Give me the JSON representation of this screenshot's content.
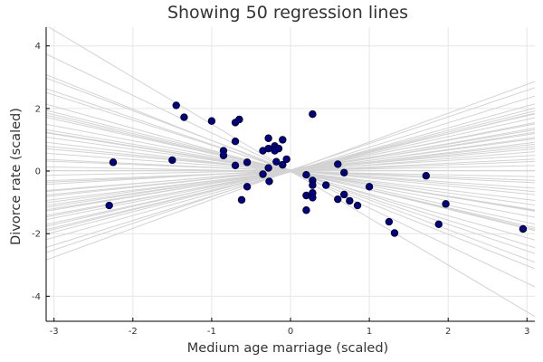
{
  "chart_data": {
    "type": "scatter",
    "title": "Showing 50 regression lines",
    "xlabel": "Medium age marriage (scaled)",
    "ylabel": "Divorce rate (scaled)",
    "xlim": [
      -3.1,
      3.1
    ],
    "ylim": [
      -4.8,
      4.6
    ],
    "xticks": [
      -3,
      -2,
      -1,
      0,
      1,
      2,
      3
    ],
    "yticks": [
      -4,
      -2,
      0,
      2,
      4
    ],
    "xtick_labels": [
      "-3",
      "-2",
      "-1",
      "0",
      "1",
      "2",
      "3"
    ],
    "ytick_labels": [
      "-4",
      "-2",
      "0",
      "2",
      "4"
    ],
    "grid": true,
    "legend": "none",
    "colors": {
      "points": "#00008b",
      "lines": "#d3d3d3",
      "grid": "#e6e6e6"
    },
    "points": [
      [
        -2.25,
        0.28
      ],
      [
        -2.3,
        -1.1
      ],
      [
        -1.45,
        2.1
      ],
      [
        -1.35,
        1.72
      ],
      [
        -1.5,
        0.35
      ],
      [
        -1.0,
        1.6
      ],
      [
        -0.85,
        0.65
      ],
      [
        -0.85,
        0.5
      ],
      [
        -0.7,
        1.55
      ],
      [
        -0.65,
        1.65
      ],
      [
        -0.7,
        0.95
      ],
      [
        -0.7,
        0.18
      ],
      [
        -0.55,
        0.28
      ],
      [
        -0.62,
        -0.92
      ],
      [
        -0.55,
        -0.5
      ],
      [
        -0.35,
        0.65
      ],
      [
        -0.35,
        -0.1
      ],
      [
        -0.28,
        1.05
      ],
      [
        -0.28,
        0.72
      ],
      [
        -0.28,
        0.1
      ],
      [
        -0.27,
        -0.33
      ],
      [
        -0.2,
        0.8
      ],
      [
        -0.2,
        0.65
      ],
      [
        -0.18,
        0.3
      ],
      [
        -0.15,
        0.72
      ],
      [
        -0.1,
        1.0
      ],
      [
        -0.1,
        0.2
      ],
      [
        -0.05,
        0.38
      ],
      [
        0.2,
        -0.12
      ],
      [
        0.2,
        -0.78
      ],
      [
        0.2,
        -1.25
      ],
      [
        0.28,
        1.82
      ],
      [
        0.28,
        -0.3
      ],
      [
        0.28,
        -0.45
      ],
      [
        0.28,
        -0.7
      ],
      [
        0.28,
        -0.85
      ],
      [
        0.45,
        -0.45
      ],
      [
        0.6,
        0.22
      ],
      [
        0.6,
        -0.9
      ],
      [
        0.68,
        -0.75
      ],
      [
        0.68,
        -0.05
      ],
      [
        0.75,
        -0.95
      ],
      [
        0.85,
        -1.1
      ],
      [
        1.0,
        -0.5
      ],
      [
        1.25,
        -1.62
      ],
      [
        1.32,
        -1.98
      ],
      [
        1.72,
        -0.15
      ],
      [
        1.88,
        -1.7
      ],
      [
        1.97,
        -1.05
      ],
      [
        2.95,
        -1.85
      ]
    ],
    "regression_lines": [
      [
        0.0,
        -1.5
      ],
      [
        0.02,
        -1.2
      ],
      [
        -0.02,
        -1.0
      ],
      [
        0.03,
        -0.8
      ],
      [
        0.0,
        -0.6
      ],
      [
        -0.02,
        -0.4
      ],
      [
        0.02,
        -0.25
      ],
      [
        0.0,
        -0.12
      ],
      [
        0.02,
        0.0
      ],
      [
        0.0,
        0.1
      ],
      [
        0.03,
        0.22
      ],
      [
        -0.01,
        0.35
      ],
      [
        0.02,
        0.48
      ],
      [
        0.0,
        0.62
      ],
      [
        -0.02,
        0.78
      ],
      [
        0.01,
        0.92
      ],
      [
        0.03,
        -0.95
      ],
      [
        -0.03,
        -0.7
      ],
      [
        0.01,
        -0.55
      ],
      [
        0.0,
        -0.35
      ],
      [
        0.04,
        0.15
      ],
      [
        -0.01,
        0.3
      ],
      [
        0.02,
        0.42
      ],
      [
        0.0,
        0.55
      ],
      [
        0.01,
        -0.18
      ],
      [
        0.02,
        0.05
      ],
      [
        -0.02,
        0.7
      ],
      [
        0.03,
        0.85
      ],
      [
        0.0,
        -0.85
      ],
      [
        0.01,
        -0.48
      ],
      [
        0.02,
        0.27
      ],
      [
        -0.01,
        -0.3
      ],
      [
        0.03,
        0.58
      ],
      [
        0.0,
        0.4
      ],
      [
        -0.02,
        -0.05
      ],
      [
        0.01,
        0.12
      ],
      [
        0.02,
        -0.62
      ],
      [
        0.0,
        0.5
      ],
      [
        -0.01,
        -0.58
      ],
      [
        0.02,
        -0.42
      ],
      [
        0.01,
        0.33
      ],
      [
        0.0,
        0.2
      ],
      [
        -0.02,
        0.45
      ],
      [
        0.03,
        -0.22
      ],
      [
        0.0,
        0.65
      ],
      [
        0.01,
        -0.1
      ],
      [
        -0.01,
        0.6
      ],
      [
        0.02,
        0.38
      ],
      [
        0.0,
        -0.4
      ],
      [
        0.01,
        0.25
      ]
    ]
  }
}
